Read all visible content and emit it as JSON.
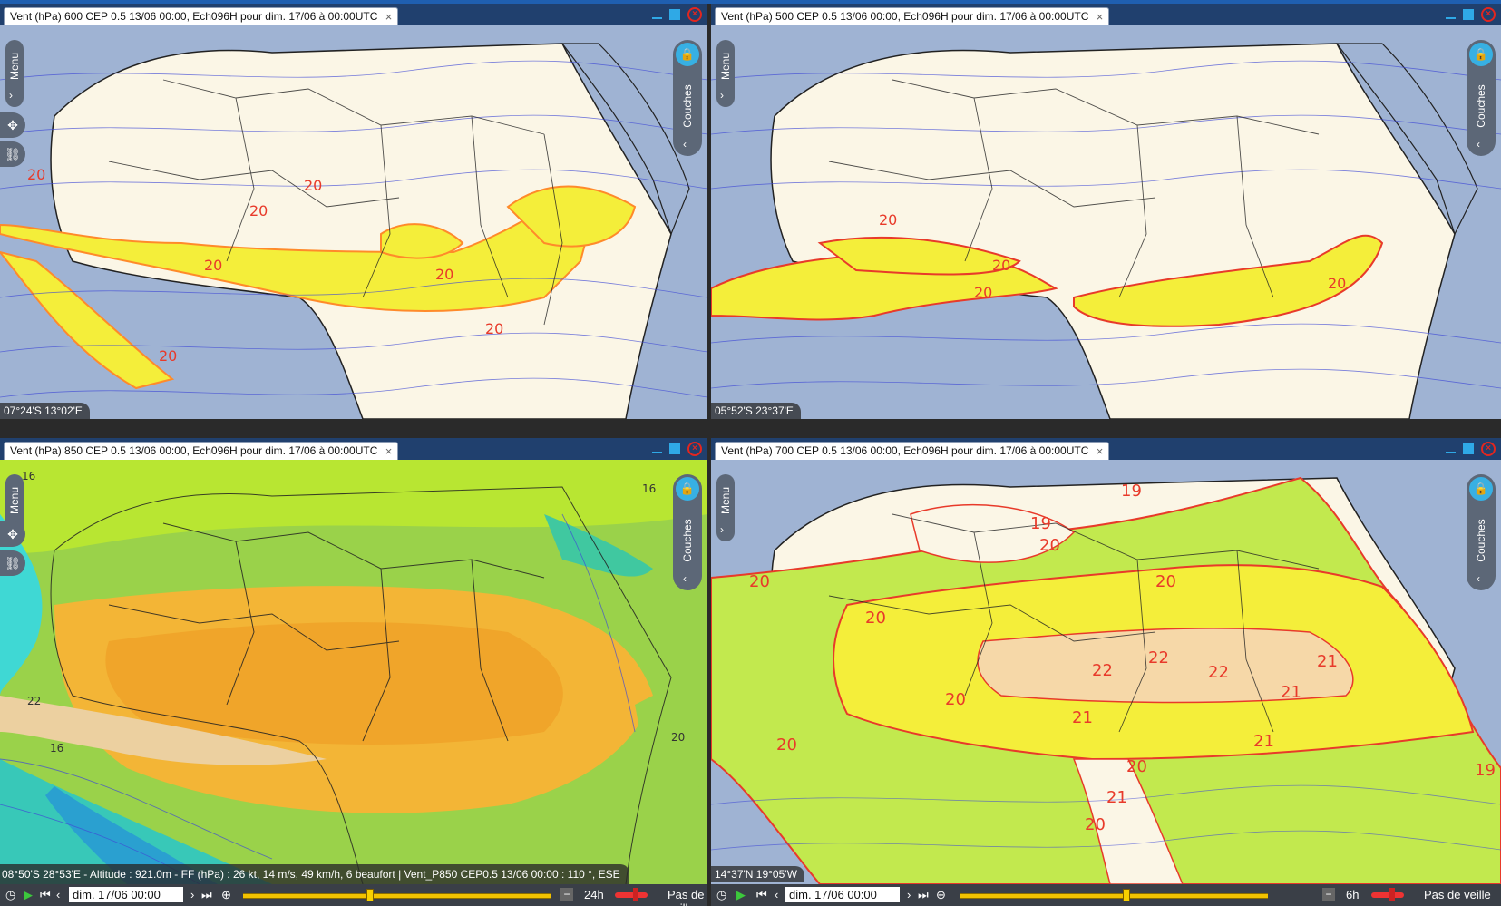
{
  "panels": [
    {
      "id": "tl",
      "tab_title": "Vent  (hPa) 600 CEP 0.5 13/06 00:00, Ech096H pour dim. 17/06 à 00:00UTC",
      "coordinates": "07°24'S 13°02'E",
      "contour_labels": [
        "20",
        "20",
        "20",
        "20",
        "20",
        "20",
        "20"
      ]
    },
    {
      "id": "tr",
      "tab_title": "Vent  (hPa) 500 CEP 0.5 13/06 00:00, Ech096H pour dim. 17/06 à 00:00UTC",
      "coordinates": "05°52'S 23°37'E",
      "contour_labels": [
        "20",
        "20",
        "20",
        "20"
      ]
    },
    {
      "id": "bl",
      "tab_title": "Vent  (hPa) 850 CEP 0.5 13/06 00:00, Ech096H pour dim. 17/06 à 00:00UTC",
      "status_line": "08°50'S 28°53'E - Altitude : 921.0m - FF (hPa) : 26 kt, 14 m/s, 49 km/h, 6 beaufort | Vent_P850 CEP0.5 13/06 00:00 : 110 °, ESE",
      "contour_labels": [
        "16",
        "22",
        "16",
        "16",
        "20"
      ],
      "time_step": "24h"
    },
    {
      "id": "br",
      "tab_title": "Vent  (hPa) 700 CEP 0.5 13/06 00:00, Ech096H pour dim. 17/06 à 00:00UTC",
      "coordinates": "14°37'N 19°05'W",
      "contour_labels": [
        "20",
        "19",
        "20",
        "20",
        "19",
        "20",
        "22",
        "22",
        "21",
        "22",
        "21",
        "20",
        "21",
        "20",
        "21",
        "20",
        "21",
        "20",
        "19"
      ],
      "time_step": "6h"
    }
  ],
  "ui": {
    "menu_label": "Menu",
    "couches_label": "Couches",
    "date_value": "dim. 17/06 00:00",
    "veille_label": "Pas de veille",
    "close_glyph": "×",
    "chevron_right": "›",
    "chevron_left": "‹",
    "colors": {
      "sea": "#9fb3d3",
      "land": "#fbf6e6",
      "jet_fill": "#f4ee3a",
      "jet_edge": "#ff8a2a",
      "contour": "#e83a2a",
      "streamline": "#3f49d6",
      "border": "#222222"
    }
  }
}
